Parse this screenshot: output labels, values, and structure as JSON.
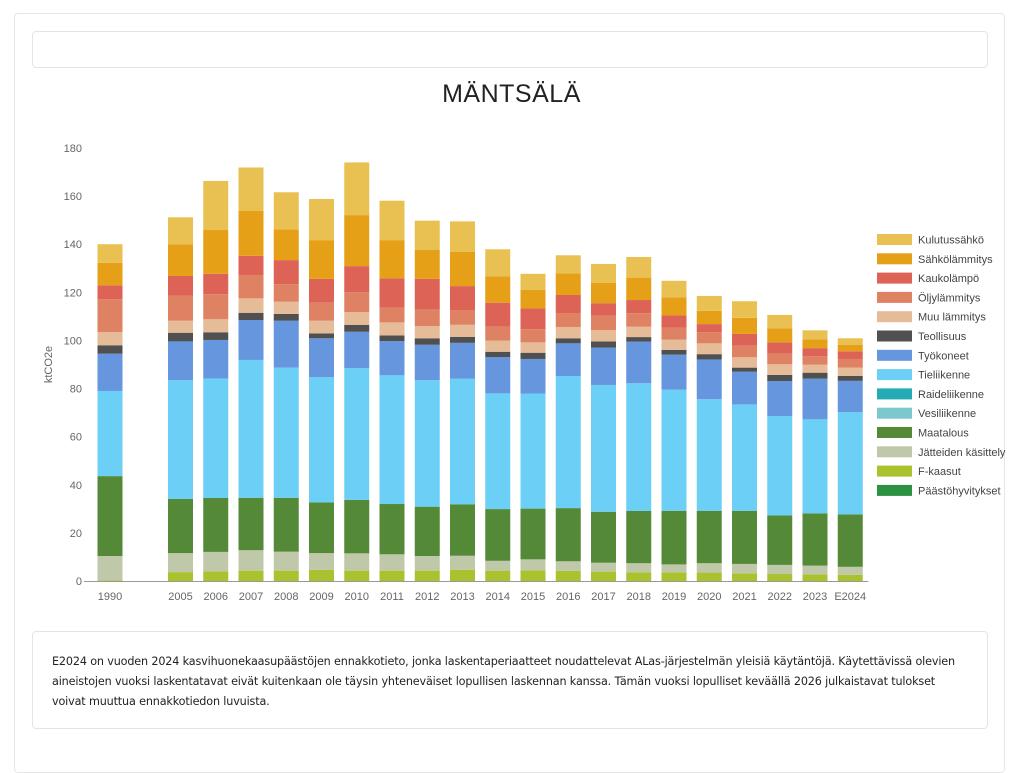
{
  "page": {
    "title": "MÄNTSÄLÄ",
    "note": "E2024 on vuoden 2024 kasvihuonekaasupäästöjen ennakkotieto, jonka laskentaperiaatteet noudattelevat ALas-järjestelmän yleisiä käytäntöjä. Käytettävissä olevien aineistojen vuoksi laskentatavat eivät kuitenkaan ole täysin yhteneväiset lopullisen laskennan kanssa. Tämän vuoksi lopulliset keväällä 2026 julkaistavat tulokset voivat muuttua ennakkotiedon luvuista."
  },
  "chart_data": {
    "type": "bar",
    "stacked": true,
    "title": "MÄNTSÄLÄ",
    "xlabel": "",
    "ylabel": "ktCO2e",
    "ylim": [
      0,
      180
    ],
    "yticks": [
      0,
      20,
      40,
      60,
      80,
      100,
      120,
      140,
      160,
      180
    ],
    "grid": false,
    "legend_position": "right",
    "categories": [
      "1990",
      "",
      "2005",
      "2006",
      "2007",
      "2008",
      "2009",
      "2010",
      "2011",
      "2012",
      "2013",
      "2014",
      "2015",
      "2016",
      "2017",
      "2018",
      "2019",
      "2020",
      "2021",
      "2022",
      "2023",
      "E2024"
    ],
    "series": [
      {
        "name": "Päästöhyvitykset",
        "color": "#2C9241",
        "values": [
          0,
          null,
          0,
          0,
          0,
          0,
          0,
          0,
          0,
          0,
          0,
          0,
          0,
          0,
          0,
          0,
          0,
          0,
          0,
          0,
          0,
          0
        ]
      },
      {
        "name": "F-kaasut",
        "color": "#A9C22E",
        "values": [
          0.3,
          null,
          3.7,
          4.0,
          4.3,
          4.3,
          4.6,
          4.3,
          4.3,
          4.3,
          4.7,
          4.3,
          4.4,
          4.2,
          3.9,
          3.6,
          3.6,
          3.5,
          3.2,
          2.9,
          2.8,
          2.6
        ]
      },
      {
        "name": "Jätteiden käsittely",
        "color": "#BFC8A9",
        "values": [
          10.1,
          null,
          7.9,
          8.1,
          8.5,
          7.9,
          7.0,
          7.2,
          6.8,
          6.1,
          5.8,
          4.1,
          4.6,
          4.0,
          3.7,
          3.8,
          3.3,
          3.9,
          3.9,
          3.8,
          3.6,
          3.3
        ]
      },
      {
        "name": "Maatalous",
        "color": "#538937",
        "values": [
          33.2,
          null,
          22.5,
          22.4,
          21.8,
          22.4,
          21.1,
          22.2,
          20.9,
          20.5,
          21.4,
          21.5,
          21.1,
          22.1,
          21.2,
          21.7,
          22.3,
          21.8,
          22.1,
          20.6,
          21.7,
          21.8
        ]
      },
      {
        "name": "Vesiliikenne",
        "color": "#7CC8CD",
        "values": [
          0,
          null,
          0,
          0,
          0,
          0,
          0,
          0,
          0,
          0,
          0,
          0,
          0,
          0,
          0,
          0,
          0,
          0,
          0,
          0,
          0,
          0
        ]
      },
      {
        "name": "Raideliikenne",
        "color": "#25ABB4",
        "values": [
          0,
          null,
          0,
          0,
          0,
          0,
          0,
          0,
          0,
          0,
          0,
          0,
          0,
          0,
          0,
          0,
          0,
          0,
          0,
          0,
          0,
          0
        ]
      },
      {
        "name": "Tieliikenne",
        "color": "#6CCFF6",
        "values": [
          35.4,
          null,
          49.4,
          49.7,
          57.3,
          54.1,
          52.0,
          54.8,
          53.5,
          52.6,
          52.2,
          48.1,
          47.8,
          54.9,
          52.7,
          53.1,
          50.3,
          46.4,
          44.2,
          41.3,
          39.1,
          42.5
        ]
      },
      {
        "name": "Työkoneet",
        "color": "#6596DE",
        "values": [
          15.5,
          null,
          16.1,
          16.0,
          16.6,
          19.5,
          16.2,
          15.1,
          14.2,
          14.7,
          14.9,
          15.1,
          14.4,
          13.6,
          15.5,
          17.3,
          14.6,
          16.5,
          13.6,
          14.5,
          16.9,
          13.0
        ]
      },
      {
        "name": "Teollisuus",
        "color": "#505050",
        "values": [
          3.5,
          null,
          3.6,
          3.2,
          3.0,
          2.8,
          2.0,
          2.9,
          2.4,
          2.7,
          2.5,
          2.2,
          2.6,
          2.1,
          2.6,
          1.9,
          2.0,
          2.2,
          1.7,
          2.6,
          2.5,
          2.1
        ]
      },
      {
        "name": "Muu lämmitys",
        "color": "#E6BB98",
        "values": [
          5.5,
          null,
          5.0,
          5.4,
          6.0,
          5.1,
          5.3,
          5.3,
          5.4,
          5.1,
          5.0,
          4.6,
          4.3,
          4.7,
          4.7,
          4.3,
          4.2,
          4.5,
          4.3,
          4.4,
          3.3,
          3.4
        ]
      },
      {
        "name": "Öljylämmitys",
        "color": "#DF8263",
        "values": [
          13.6,
          null,
          10.5,
          10.4,
          9.7,
          7.3,
          7.5,
          8.2,
          6.1,
          6.9,
          6.0,
          5.8,
          5.5,
          5.8,
          6.0,
          5.6,
          5.1,
          4.6,
          4.8,
          4.4,
          3.6,
          3.6
        ]
      },
      {
        "name": "Kaukolämpö",
        "color": "#DD6356",
        "values": [
          5.8,
          null,
          8.1,
          8.5,
          8.0,
          10.0,
          9.9,
          10.9,
          12.2,
          12.7,
          10.1,
          10.0,
          8.6,
          7.5,
          5.2,
          5.5,
          5.0,
          3.4,
          4.9,
          4.7,
          3.3,
          3.2
        ]
      },
      {
        "name": "Sähkölämmitys",
        "color": "#E5A017",
        "values": [
          9.4,
          null,
          13.2,
          18.2,
          18.6,
          12.8,
          16.1,
          21.2,
          15.9,
          12.0,
          14.3,
          10.9,
          7.8,
          9.0,
          8.4,
          9.3,
          7.5,
          5.5,
          6.7,
          5.8,
          3.7,
          2.6
        ]
      },
      {
        "name": "Kulutussähkö",
        "color": "#E9C152",
        "values": [
          7.7,
          null,
          11.2,
          20.4,
          18.1,
          15.4,
          17.1,
          21.9,
          16.4,
          12.2,
          12.6,
          11.3,
          6.6,
          7.5,
          7.9,
          8.6,
          6.9,
          6.2,
          6.9,
          5.6,
          3.7,
          2.8
        ]
      }
    ],
    "legend_order": [
      "Kulutussähkö",
      "Sähkölämmitys",
      "Kaukolämpö",
      "Öljylämmitys",
      "Muu lämmitys",
      "Teollisuus",
      "Työkoneet",
      "Tieliikenne",
      "Raideliikenne",
      "Vesiliikenne",
      "Maatalous",
      "Jätteiden käsittely",
      "F-kaasut",
      "Päästöhyvitykset"
    ]
  }
}
